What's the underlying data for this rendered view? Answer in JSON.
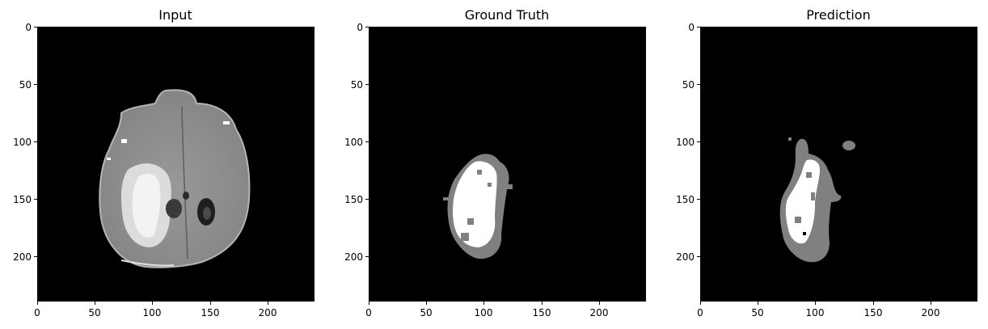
{
  "figure": {
    "panels": [
      {
        "id": "input",
        "title": "Input",
        "x_ticks": [
          "0",
          "50",
          "100",
          "150",
          "200"
        ],
        "y_ticks": [
          "0",
          "50",
          "100",
          "150",
          "200"
        ],
        "image_description": "grayscale axial brain MRI slice with a bright tumor region on the left and a small dark oval cavity on the right"
      },
      {
        "id": "ground-truth",
        "title": "Ground Truth",
        "x_ticks": [
          "0",
          "50",
          "100",
          "150",
          "200"
        ],
        "y_ticks": [
          "0",
          "50",
          "100",
          "150",
          "200"
        ],
        "image_description": "segmentation mask: white tumor core with gray edema border on black background"
      },
      {
        "id": "prediction",
        "title": "Prediction",
        "x_ticks": [
          "0",
          "50",
          "100",
          "150",
          "200"
        ],
        "y_ticks": [
          "0",
          "50",
          "100",
          "150",
          "200"
        ],
        "image_description": "predicted segmentation mask: white core with larger gray edema region and a small gray blob at upper right"
      }
    ],
    "colors": {
      "background": "#000000",
      "mask_core": "#ffffff",
      "mask_edema": "#808080",
      "brain_tissue": "#8f8f8f"
    }
  }
}
